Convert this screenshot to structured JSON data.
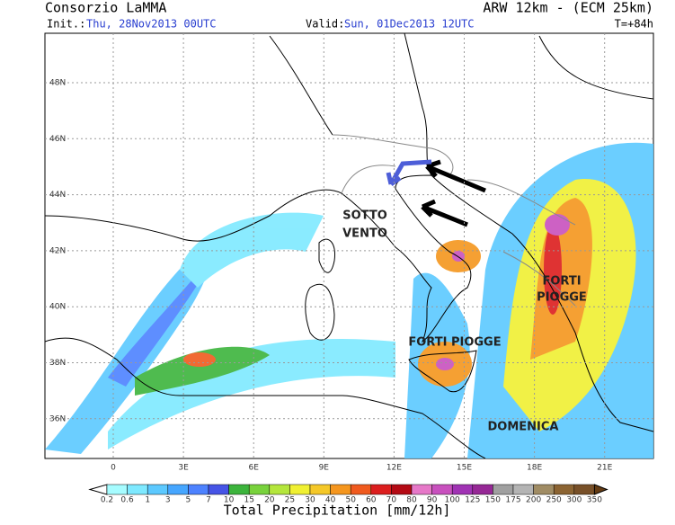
{
  "header": {
    "left_title": "Consorzio LaMMA",
    "init_label": "Init.:",
    "init_value": "Thu, 28Nov2013 00UTC",
    "valid_label": "Valid:",
    "valid_value": "Sun, 01Dec2013 12UTC",
    "right_title": "ARW 12km - (ECM 25km)",
    "lead_time": "T=+84h"
  },
  "map": {
    "lat_labels": [
      "48N",
      "46N",
      "44N",
      "42N",
      "40N",
      "38N",
      "36N"
    ],
    "lon_labels": [
      "0",
      "3E",
      "6E",
      "9E",
      "12E",
      "15E",
      "18E",
      "21E"
    ],
    "annotations": [
      {
        "lines": [
          "SOTTO",
          "VENTO"
        ]
      },
      {
        "lines": [
          "FORTI",
          "PIOGGE"
        ]
      },
      {
        "lines": [
          "FORTI PIOGGE"
        ]
      },
      {
        "lines": [
          "DOMENICA"
        ]
      }
    ]
  },
  "colorbar": {
    "title": "Total Precipitation [mm/12h]",
    "labels": [
      "0.2",
      "0.6",
      "1",
      "3",
      "5",
      "7",
      "10",
      "15",
      "20",
      "25",
      "30",
      "40",
      "50",
      "60",
      "70",
      "80",
      "90",
      "100",
      "125",
      "150",
      "175",
      "200",
      "250",
      "300",
      "350"
    ],
    "colors": [
      "#ffffff",
      "#a6fcff",
      "#7ee9ff",
      "#5cc9ff",
      "#46a6ff",
      "#4d82ff",
      "#4654e6",
      "#3cb43c",
      "#78d23c",
      "#b4e63c",
      "#f0f032",
      "#f5c828",
      "#f5961e",
      "#f05a1e",
      "#dc1e1e",
      "#b40a14",
      "#e678c8",
      "#c850be",
      "#a032b4",
      "#962896",
      "#a0a0a0",
      "#b4b4b4",
      "#a08c64",
      "#8c6432",
      "#785028",
      "#643c14"
    ]
  }
}
